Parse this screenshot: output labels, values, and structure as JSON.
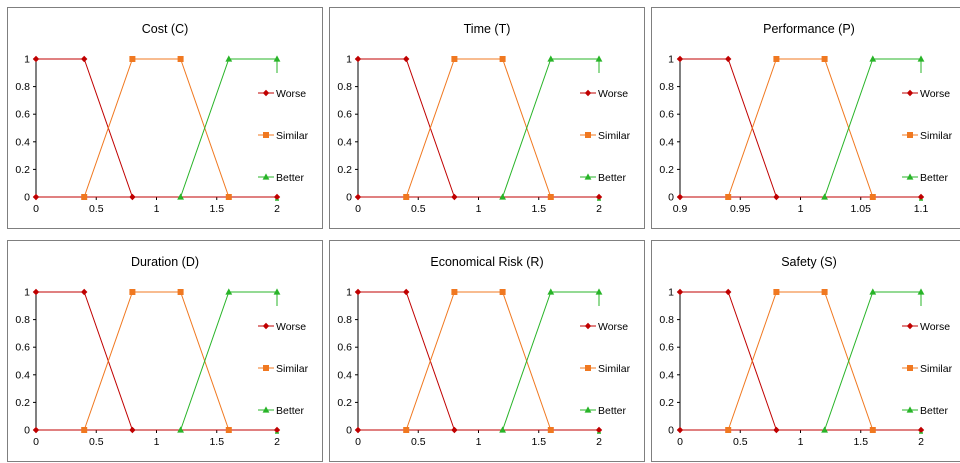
{
  "colors": {
    "worse": "#c00000",
    "similar": "#f07820",
    "better": "#28b428",
    "axis": "#000000",
    "border": "#7f7f7f"
  },
  "legend_labels": [
    "Worse",
    "Similar",
    "Better"
  ],
  "chart_data": [
    {
      "type": "line",
      "title": "Cost (C)",
      "xlim": [
        0,
        2
      ],
      "ylim": [
        0,
        1
      ],
      "x_ticks": [
        "0",
        "0.5",
        "1",
        "1.5",
        "2"
      ],
      "y_ticks": [
        "0",
        "0.2",
        "0.4",
        "0.6",
        "0.8",
        "1"
      ],
      "series": [
        {
          "name": "Worse",
          "points": [
            [
              0,
              1
            ],
            [
              0.4,
              1
            ],
            [
              0.8,
              0
            ]
          ],
          "baseline": [
            [
              0,
              0
            ],
            [
              2,
              0
            ]
          ]
        },
        {
          "name": "Similar",
          "points": [
            [
              0.4,
              0
            ],
            [
              0.8,
              1
            ],
            [
              1.2,
              1
            ],
            [
              1.6,
              0
            ]
          ]
        },
        {
          "name": "Better",
          "points": [
            [
              1.2,
              0
            ],
            [
              1.6,
              1
            ],
            [
              2,
              1
            ]
          ]
        }
      ]
    },
    {
      "type": "line",
      "title": "Time (T)",
      "xlim": [
        0,
        2
      ],
      "ylim": [
        0,
        1
      ],
      "x_ticks": [
        "0",
        "0.5",
        "1",
        "1.5",
        "2"
      ],
      "y_ticks": [
        "0",
        "0.2",
        "0.4",
        "0.6",
        "0.8",
        "1"
      ],
      "series": [
        {
          "name": "Worse",
          "points": [
            [
              0,
              1
            ],
            [
              0.4,
              1
            ],
            [
              0.8,
              0
            ]
          ],
          "baseline": [
            [
              0,
              0
            ],
            [
              2,
              0
            ]
          ]
        },
        {
          "name": "Similar",
          "points": [
            [
              0.4,
              0
            ],
            [
              0.8,
              1
            ],
            [
              1.2,
              1
            ],
            [
              1.6,
              0
            ]
          ]
        },
        {
          "name": "Better",
          "points": [
            [
              1.2,
              0
            ],
            [
              1.6,
              1
            ],
            [
              2,
              1
            ]
          ]
        }
      ]
    },
    {
      "type": "line",
      "title": "Performance (P)",
      "xlim": [
        0.9,
        1.1
      ],
      "ylim": [
        0,
        1
      ],
      "x_ticks": [
        "0.9",
        "0.95",
        "1",
        "1.05",
        "1.1"
      ],
      "y_ticks": [
        "0",
        "0.2",
        "0.4",
        "0.6",
        "0.8",
        "1"
      ],
      "series": [
        {
          "name": "Worse",
          "points": [
            [
              0.9,
              1
            ],
            [
              0.94,
              1
            ],
            [
              0.98,
              0
            ]
          ],
          "baseline": [
            [
              0.9,
              0
            ],
            [
              1.1,
              0
            ]
          ]
        },
        {
          "name": "Similar",
          "points": [
            [
              0.94,
              0
            ],
            [
              0.98,
              1
            ],
            [
              1.02,
              1
            ],
            [
              1.06,
              0
            ]
          ]
        },
        {
          "name": "Better",
          "points": [
            [
              1.02,
              0
            ],
            [
              1.06,
              1
            ],
            [
              1.1,
              1
            ]
          ]
        }
      ]
    },
    {
      "type": "line",
      "title": "Duration (D)",
      "xlim": [
        0,
        2
      ],
      "ylim": [
        0,
        1
      ],
      "x_ticks": [
        "0",
        "0.5",
        "1",
        "1.5",
        "2"
      ],
      "y_ticks": [
        "0",
        "0.2",
        "0.4",
        "0.6",
        "0.8",
        "1"
      ],
      "series": [
        {
          "name": "Worse",
          "points": [
            [
              0,
              1
            ],
            [
              0.4,
              1
            ],
            [
              0.8,
              0
            ]
          ],
          "baseline": [
            [
              0,
              0
            ],
            [
              2,
              0
            ]
          ]
        },
        {
          "name": "Similar",
          "points": [
            [
              0.4,
              0
            ],
            [
              0.8,
              1
            ],
            [
              1.2,
              1
            ],
            [
              1.6,
              0
            ]
          ]
        },
        {
          "name": "Better",
          "points": [
            [
              1.2,
              0
            ],
            [
              1.6,
              1
            ],
            [
              2,
              1
            ]
          ]
        }
      ]
    },
    {
      "type": "line",
      "title": "Economical Risk (R)",
      "xlim": [
        0,
        2
      ],
      "ylim": [
        0,
        1
      ],
      "x_ticks": [
        "0",
        "0.5",
        "1",
        "1.5",
        "2"
      ],
      "y_ticks": [
        "0",
        "0.2",
        "0.4",
        "0.6",
        "0.8",
        "1"
      ],
      "series": [
        {
          "name": "Worse",
          "points": [
            [
              0,
              1
            ],
            [
              0.4,
              1
            ],
            [
              0.8,
              0
            ]
          ],
          "baseline": [
            [
              0,
              0
            ],
            [
              2,
              0
            ]
          ]
        },
        {
          "name": "Similar",
          "points": [
            [
              0.4,
              0
            ],
            [
              0.8,
              1
            ],
            [
              1.2,
              1
            ],
            [
              1.6,
              0
            ]
          ]
        },
        {
          "name": "Better",
          "points": [
            [
              1.2,
              0
            ],
            [
              1.6,
              1
            ],
            [
              2,
              1
            ]
          ]
        }
      ]
    },
    {
      "type": "line",
      "title": "Safety (S)",
      "xlim": [
        0,
        2
      ],
      "ylim": [
        0,
        1
      ],
      "x_ticks": [
        "0",
        "0.5",
        "1",
        "1.5",
        "2"
      ],
      "y_ticks": [
        "0",
        "0.2",
        "0.4",
        "0.6",
        "0.8",
        "1"
      ],
      "series": [
        {
          "name": "Worse",
          "points": [
            [
              0,
              1
            ],
            [
              0.4,
              1
            ],
            [
              0.8,
              0
            ]
          ],
          "baseline": [
            [
              0,
              0
            ],
            [
              2,
              0
            ]
          ]
        },
        {
          "name": "Similar",
          "points": [
            [
              0.4,
              0
            ],
            [
              0.8,
              1
            ],
            [
              1.2,
              1
            ],
            [
              1.6,
              0
            ]
          ]
        },
        {
          "name": "Better",
          "points": [
            [
              1.2,
              0
            ],
            [
              1.6,
              1
            ],
            [
              2,
              1
            ]
          ]
        }
      ]
    }
  ]
}
